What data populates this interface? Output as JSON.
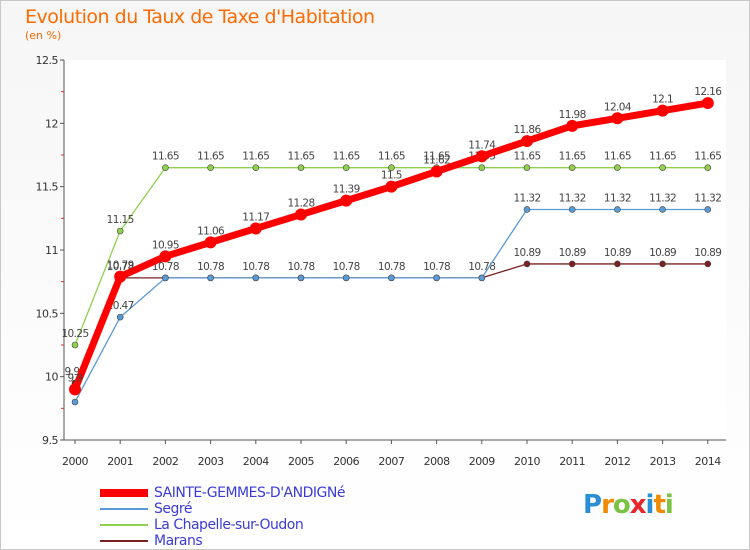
{
  "header": {
    "title": "Evolution du Taux de Taxe d'Habitation",
    "subtitle": "(en %)"
  },
  "logo": {
    "text": "Proxiti",
    "letters": [
      {
        "ch": "P",
        "color": "#2a8fd4"
      },
      {
        "ch": "r",
        "color": "#f08a00"
      },
      {
        "ch": "o",
        "color": "#7cc242"
      },
      {
        "ch": "x",
        "color": "#e8262c"
      },
      {
        "ch": "i",
        "color": "#2a8fd4"
      },
      {
        "ch": "t",
        "color": "#f08a00"
      },
      {
        "ch": "i",
        "color": "#7cc242"
      }
    ]
  },
  "chart_data": {
    "type": "line",
    "title": "Evolution du Taux de Taxe d'Habitation",
    "subtitle": "(en %)",
    "xlabel": "",
    "ylabel": "",
    "x": [
      2000,
      2001,
      2002,
      2003,
      2004,
      2005,
      2006,
      2007,
      2008,
      2009,
      2010,
      2011,
      2012,
      2013,
      2014
    ],
    "ylim": [
      9.5,
      12.5
    ],
    "yticks": [
      9.5,
      10,
      10.5,
      11,
      11.5,
      12,
      12.5
    ],
    "ytick_labels": [
      "9.5",
      "10",
      "10.5",
      "11",
      "11.5",
      "12",
      "12.5"
    ],
    "legend_position": "bottom-left",
    "series": [
      {
        "name": "SAINTE-GEMMES-D'ANDIGNé",
        "color": "#ff0000",
        "emphasis": true,
        "values": [
          9.9,
          10.79,
          10.95,
          11.06,
          11.17,
          11.28,
          11.39,
          11.5,
          11.62,
          11.74,
          11.86,
          11.98,
          12.04,
          12.1,
          12.16
        ],
        "labels": [
          "9.9",
          "10.79",
          "10.95",
          "11.06",
          "11.17",
          "11.28",
          "11.39",
          "11.5",
          "11.62",
          "11.74",
          "11.86",
          "11.98",
          "12.04",
          "12.1",
          "12.16"
        ]
      },
      {
        "name": "Segré",
        "color": "#5b9bd5",
        "emphasis": false,
        "values": [
          9.8,
          10.47,
          10.78,
          10.78,
          10.78,
          10.78,
          10.78,
          10.78,
          10.78,
          10.78,
          11.32,
          11.32,
          11.32,
          11.32,
          11.32
        ],
        "labels": [
          "",
          "10.47",
          "",
          "",
          "",
          "",
          "",
          "",
          "",
          "",
          "11.32",
          "11.32",
          "11.32",
          "11.32",
          "11.32"
        ]
      },
      {
        "name": "La Chapelle-sur-Oudon",
        "color": "#8fd14f",
        "emphasis": false,
        "values": [
          10.25,
          11.15,
          11.65,
          11.65,
          11.65,
          11.65,
          11.65,
          11.65,
          11.65,
          11.65,
          11.65,
          11.65,
          11.65,
          11.65,
          11.65
        ],
        "labels": [
          "10.25",
          "11.15",
          "11.65",
          "11.65",
          "11.65",
          "11.65",
          "11.65",
          "11.65",
          "11.65",
          "11.65",
          "11.65",
          "11.65",
          "11.65",
          "11.65",
          "11.65"
        ]
      },
      {
        "name": "Marans",
        "color": "#7a2020",
        "emphasis": false,
        "values": [
          9.95,
          10.78,
          10.78,
          10.78,
          10.78,
          10.78,
          10.78,
          10.78,
          10.78,
          10.78,
          10.89,
          10.89,
          10.89,
          10.89,
          10.89
        ],
        "labels": [
          "9.95",
          "10.78",
          "10.78",
          "10.78",
          "10.78",
          "10.78",
          "10.78",
          "10.78",
          "10.78",
          "10.78",
          "10.89",
          "10.89",
          "10.89",
          "10.89",
          "10.89"
        ]
      }
    ]
  }
}
